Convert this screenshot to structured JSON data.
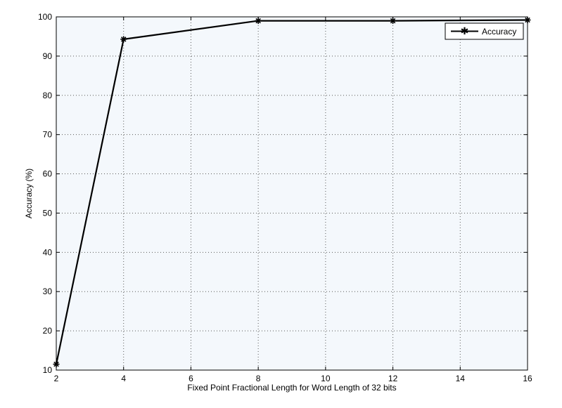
{
  "chart_data": {
    "type": "line",
    "title": "",
    "xlabel": "Fixed Point Fractional Length for Word Length of 32 bits",
    "ylabel": "Accuracy (%)",
    "xlim": [
      2,
      16
    ],
    "ylim": [
      10,
      100
    ],
    "xticks": [
      2,
      4,
      6,
      8,
      10,
      12,
      14,
      16
    ],
    "yticks": [
      10,
      20,
      30,
      40,
      50,
      60,
      70,
      80,
      90,
      100
    ],
    "grid": true,
    "grid_style": "dotted",
    "legend_position": "top-right",
    "series": [
      {
        "name": "Accuracy",
        "marker": "asterisk",
        "color": "#000000",
        "x": [
          2,
          4,
          8,
          12,
          16
        ],
        "y": [
          11.5,
          94.3,
          99.0,
          99.0,
          99.2
        ]
      }
    ]
  },
  "colors": {
    "plot_background": "#F4F8FC",
    "axes": "#000000",
    "grid": "#5a5a5a",
    "line": "#000000"
  }
}
